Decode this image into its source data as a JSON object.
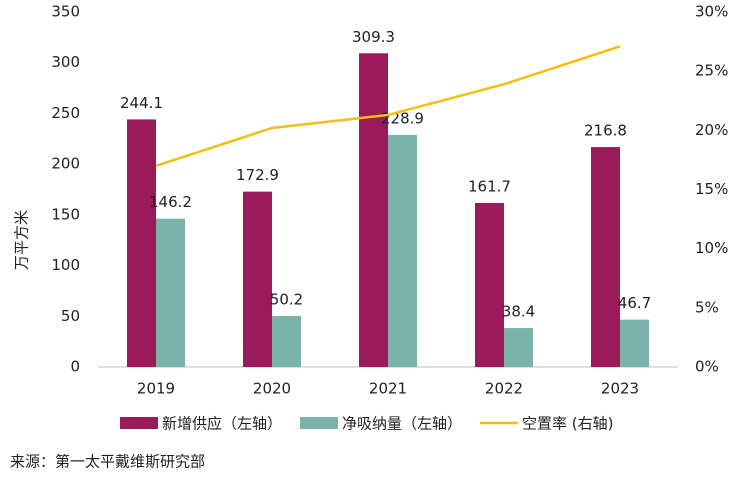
{
  "chart_data": {
    "type": "bar",
    "y_label": "万平方米",
    "source": "来源：第一太平戴维斯研究部",
    "categories": [
      "2019",
      "2020",
      "2021",
      "2022",
      "2023"
    ],
    "series": [
      {
        "name": "新增供应（左轴）",
        "type": "bar",
        "color": "#9b1b5a",
        "values": [
          244.1,
          172.9,
          309.3,
          161.7,
          216.8
        ]
      },
      {
        "name": "净吸纳量（左轴）",
        "type": "bar",
        "color": "#7ab3a9",
        "values": [
          146.2,
          50.2,
          228.9,
          38.4,
          46.7
        ]
      },
      {
        "name": "空置率 (右轴)",
        "type": "line",
        "axis": "y2",
        "color": "#f5bf0f",
        "values": [
          17.0,
          20.2,
          21.3,
          23.9,
          27.1
        ]
      }
    ],
    "ylim": [
      0,
      350
    ],
    "yticks": [
      0,
      50,
      100,
      150,
      200,
      250,
      300,
      350
    ],
    "y2lim": [
      0,
      30
    ],
    "y2ticks": [
      {
        "value": 0,
        "label": "0%"
      },
      {
        "value": 5,
        "label": "5%"
      },
      {
        "value": 10,
        "label": "10%"
      },
      {
        "value": 15,
        "label": "15%"
      },
      {
        "value": 20,
        "label": "20%"
      },
      {
        "value": 25,
        "label": "25%"
      },
      {
        "value": 30,
        "label": "30%"
      }
    ]
  }
}
